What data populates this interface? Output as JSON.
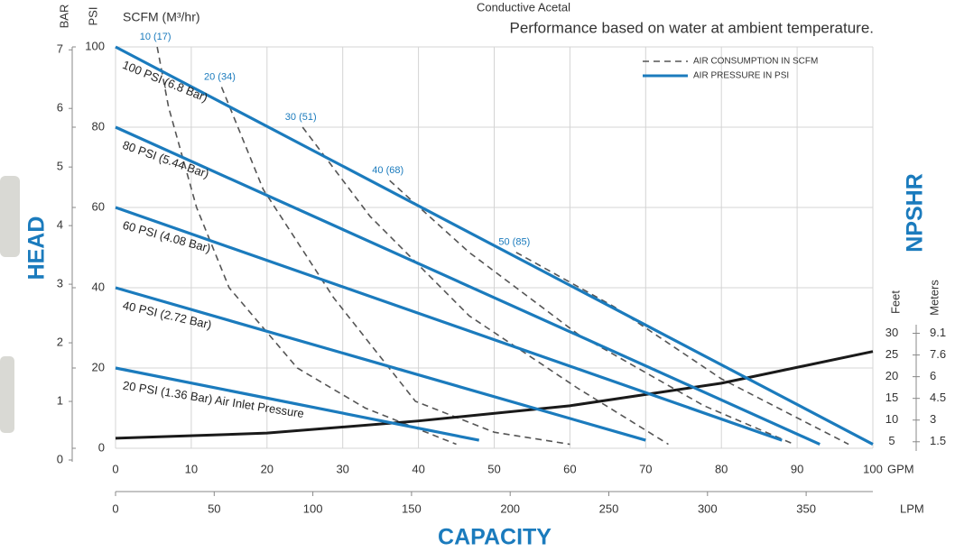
{
  "chart_data": {
    "type": "line",
    "title": "Conductive Acetal",
    "subtitle": "Performance based on water at ambient temperature.",
    "x_label": "CAPACITY",
    "y_label": "HEAD",
    "y2_label": "NPSHR",
    "x_unit": "GPM",
    "x2_unit": "LPM",
    "y_unit": "PSI",
    "y_bar_unit": "BAR",
    "scfm_header": "SCFM (M³/hr)",
    "y2_unit": "Feet",
    "y2_meter_unit": "Meters",
    "xlim": [
      0,
      100
    ],
    "xticks": [
      0,
      10,
      20,
      30,
      40,
      50,
      60,
      70,
      80,
      90,
      100
    ],
    "x2lim": [
      0,
      383.8
    ],
    "x2ticks": [
      0,
      50,
      100,
      150,
      200,
      250,
      300,
      350
    ],
    "ylim": [
      0,
      100
    ],
    "yticks": [
      0,
      20,
      40,
      60,
      80,
      100
    ],
    "y_bar_lim": [
      0.2,
      7.05
    ],
    "y_bar_ticks": [
      0,
      1,
      2,
      3,
      4,
      5,
      6,
      7
    ],
    "y2lim": [
      3.5,
      96
    ],
    "y2ticks": [
      5,
      10,
      15,
      20,
      25,
      30
    ],
    "y2_meter_ticks": [
      {
        "value": 5,
        "label": "1.5"
      },
      {
        "value": 10,
        "label": "3"
      },
      {
        "value": 15,
        "label": "4.5"
      },
      {
        "value": 20,
        "label": "6"
      },
      {
        "value": 25,
        "label": "7.6"
      },
      {
        "value": 30,
        "label": "9.1"
      }
    ],
    "grid": true,
    "legend": "upper right",
    "pressure_series": {
      "legend": "AIR PRESSURE IN PSI",
      "color": "#1b7bbd",
      "series": [
        {
          "name": "100 PSI (6.8 Bar)",
          "x": [
            0,
            100
          ],
          "values": [
            100,
            1
          ]
        },
        {
          "name": "80 PSI (5.44 Bar)",
          "x": [
            0,
            93
          ],
          "values": [
            80,
            1
          ]
        },
        {
          "name": "60 PSI (4.08 Bar)",
          "x": [
            0,
            88
          ],
          "values": [
            60,
            2
          ]
        },
        {
          "name": "40 PSI (2.72 Bar)",
          "x": [
            0,
            70
          ],
          "values": [
            40,
            2
          ]
        },
        {
          "name": "20 PSI (1.36 Bar) Air Inlet Pressure",
          "x": [
            0,
            48
          ],
          "values": [
            20,
            2
          ]
        }
      ]
    },
    "air_series": {
      "legend": "AIR CONSUMPTION IN SCFM",
      "color": "#555555",
      "series": [
        {
          "name": "10 (17)",
          "x": [
            5.5,
            7,
            10.7,
            15,
            24,
            33,
            45
          ],
          "values": [
            100,
            85,
            60,
            40,
            20,
            10,
            1
          ]
        },
        {
          "name": "20 (34)",
          "x": [
            14,
            19.5,
            28.8,
            39.6,
            50,
            60
          ],
          "values": [
            90,
            64.5,
            37.5,
            11.7,
            4,
            1
          ]
        },
        {
          "name": "30 (51)",
          "x": [
            24.7,
            33.6,
            46.7,
            61,
            73
          ],
          "values": [
            80,
            57.8,
            33,
            15,
            1
          ]
        },
        {
          "name": "40 (68)",
          "x": [
            36.2,
            46.7,
            61,
            77.7,
            89.6
          ],
          "values": [
            66.7,
            48.8,
            28.5,
            10.6,
            1
          ]
        },
        {
          "name": "50 (85)",
          "x": [
            52.9,
            65.8,
            80,
            96.8
          ],
          "values": [
            48.8,
            35.3,
            17.3,
            1
          ]
        }
      ]
    },
    "npshr_series": {
      "color": "#1a1a1a",
      "axis": "y2",
      "x": [
        0,
        20,
        40,
        60,
        80,
        100
      ],
      "values": [
        5.8,
        7,
        9.8,
        13.3,
        18.5,
        25.8
      ]
    }
  }
}
